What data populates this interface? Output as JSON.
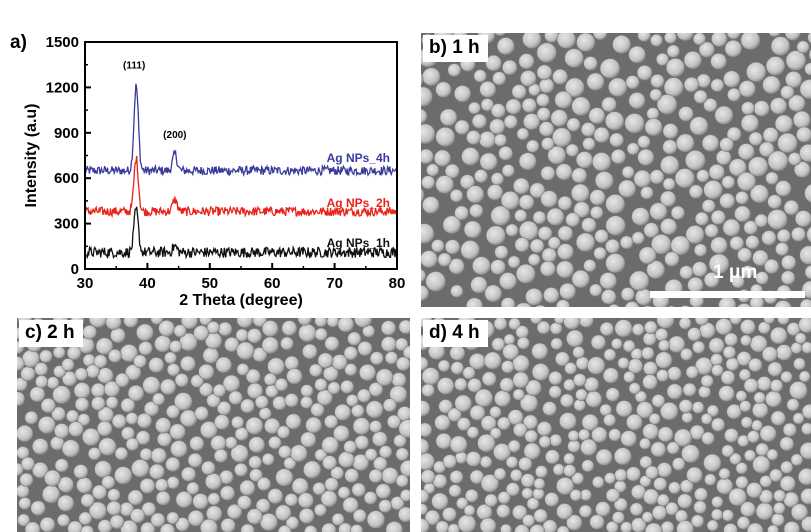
{
  "panels": {
    "a": {
      "letter": "a)"
    },
    "b": {
      "label": "b) 1 h",
      "scale_label": "1 μm"
    },
    "c": {
      "label": "c) 2 h"
    },
    "d": {
      "label": "d) 4 h"
    }
  },
  "chart_data": {
    "type": "line",
    "title": "",
    "xlabel": "2 Theta (degree)",
    "ylabel": "Intensity (a.u)",
    "xlim": [
      30,
      80
    ],
    "ylim": [
      0,
      1500
    ],
    "xticks": [
      "30",
      "40",
      "50",
      "60",
      "70",
      "80"
    ],
    "yticks": [
      "0",
      "300",
      "600",
      "900",
      "1200",
      "1500"
    ],
    "series": [
      {
        "name": "Ag NPs_4h",
        "color": "#3b3b9e",
        "baseline": 650,
        "noise": 30,
        "peaks": [
          {
            "x": 38.2,
            "y": 1210
          },
          {
            "x": 44.4,
            "y": 760
          }
        ]
      },
      {
        "name": "Ag NPs_2h",
        "color": "#e8241c",
        "baseline": 380,
        "noise": 30,
        "peaks": [
          {
            "x": 38.2,
            "y": 730
          },
          {
            "x": 44.4,
            "y": 460
          }
        ]
      },
      {
        "name": "Ag NPs_1h",
        "color": "#111111",
        "baseline": 110,
        "noise": 35,
        "peaks": [
          {
            "x": 38.2,
            "y": 390
          },
          {
            "x": 44.4,
            "y": 150
          }
        ]
      }
    ],
    "annotations": [
      {
        "text": "(111)",
        "x": 38.2,
        "y": 1300
      },
      {
        "text": "(200)",
        "x": 44.4,
        "y": 840
      }
    ]
  }
}
